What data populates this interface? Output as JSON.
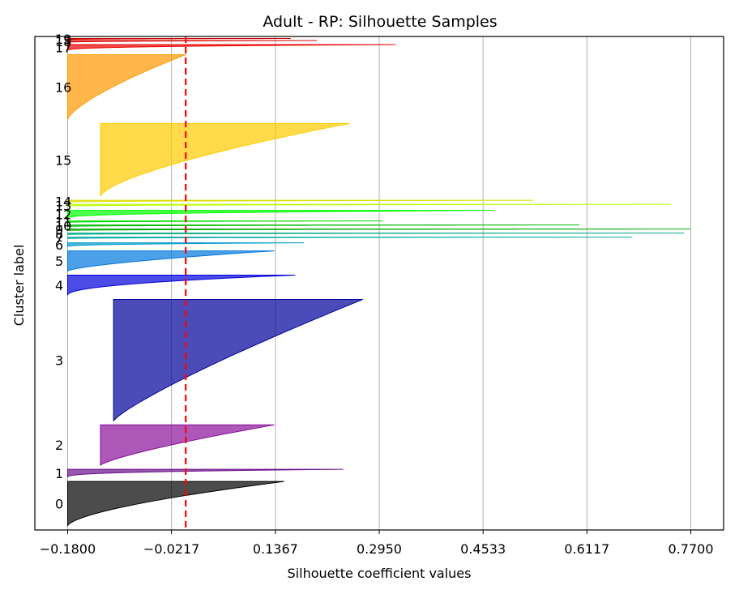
{
  "chart_data": {
    "type": "silhouette",
    "title": "Adult - RP: Silhouette Samples",
    "xlabel": "Silhouette coefficient values",
    "ylabel": "Cluster label",
    "xlim": [
      -0.23,
      0.82
    ],
    "xticks": [
      "-0.1800",
      "-0.0217",
      "0.1367",
      "0.2950",
      "0.4533",
      "0.6117",
      "0.7700"
    ],
    "xtick_values": [
      -0.18,
      -0.0217,
      0.1367,
      0.295,
      0.4533,
      0.6117,
      0.77
    ],
    "grid_x": true,
    "avg_silhouette": 0.0,
    "avg_line_color": "#ff0000",
    "clusters": [
      {
        "label": "0",
        "y_start": 10,
        "y_end": 120,
        "max": 0.15,
        "min": -0.18,
        "shape": 1.6,
        "color": "#000000"
      },
      {
        "label": "1",
        "y_start": 130,
        "y_end": 150,
        "max": 0.24,
        "min": -0.18,
        "shape": 3.0,
        "color": "#6b0f8a"
      },
      {
        "label": "2",
        "y_start": 160,
        "y_end": 260,
        "max": 0.135,
        "min": -0.13,
        "shape": 1.3,
        "color": "#8a0f9a"
      },
      {
        "label": "3",
        "y_start": 270,
        "y_end": 570,
        "max": 0.27,
        "min": -0.11,
        "shape": 1.2,
        "color": "#00009a"
      },
      {
        "label": "4",
        "y_start": 580,
        "y_end": 630,
        "max": 0.167,
        "min": -0.18,
        "shape": 2.2,
        "color": "#0000dd"
      },
      {
        "label": "5",
        "y_start": 640,
        "y_end": 690,
        "max": 0.135,
        "min": -0.18,
        "shape": 1.5,
        "color": "#0077dd"
      },
      {
        "label": "6",
        "y_start": 700,
        "y_end": 710,
        "max": 0.18,
        "min": -0.18,
        "shape": 3.0,
        "color": "#0099cc"
      },
      {
        "label": "7",
        "y_start": 720,
        "y_end": 724,
        "max": 0.68,
        "min": -0.18,
        "shape": 3.0,
        "color": "#00aaaa"
      },
      {
        "label": "8",
        "y_start": 730,
        "y_end": 734,
        "max": 0.76,
        "min": -0.18,
        "shape": 3.0,
        "color": "#00aa88"
      },
      {
        "label": "9",
        "y_start": 740,
        "y_end": 744,
        "max": 0.77,
        "min": -0.18,
        "shape": 3.0,
        "color": "#00aa00"
      },
      {
        "label": "10",
        "y_start": 750,
        "y_end": 754,
        "max": 0.6,
        "min": -0.18,
        "shape": 3.0,
        "color": "#00bb00"
      },
      {
        "label": "11",
        "y_start": 760,
        "y_end": 764,
        "max": 0.3,
        "min": -0.18,
        "shape": 3.0,
        "color": "#00dd00"
      },
      {
        "label": "12",
        "y_start": 770,
        "y_end": 790,
        "max": 0.47,
        "min": -0.18,
        "shape": 3.0,
        "color": "#00ff00"
      },
      {
        "label": "13",
        "y_start": 800,
        "y_end": 805,
        "max": 0.74,
        "min": -0.18,
        "shape": 3.0,
        "color": "#bbff00"
      },
      {
        "label": "14",
        "y_start": 810,
        "y_end": 815,
        "max": 0.53,
        "min": -0.18,
        "shape": 3.0,
        "color": "#dddd00"
      },
      {
        "label": "15",
        "y_start": 825,
        "y_end": 1005,
        "max": 0.25,
        "min": -0.13,
        "shape": 1.5,
        "color": "#ffcc00"
      },
      {
        "label": "16",
        "y_start": 1015,
        "y_end": 1175,
        "max": 0.0,
        "min": -0.18,
        "shape": 1.4,
        "color": "#ff9900"
      },
      {
        "label": "17",
        "y_start": 1185,
        "y_end": 1200,
        "max": 0.32,
        "min": -0.18,
        "shape": 3.0,
        "color": "#ee0000"
      },
      {
        "label": "18",
        "y_start": 1205,
        "y_end": 1210,
        "max": 0.2,
        "min": -0.18,
        "shape": 3.0,
        "color": "#dd0000"
      },
      {
        "label": "19",
        "y_start": 1212,
        "y_end": 1215,
        "max": 0.16,
        "min": -0.18,
        "shape": 3.0,
        "color": "#cc0000"
      }
    ],
    "ylim": [
      0,
      1220
    ]
  }
}
